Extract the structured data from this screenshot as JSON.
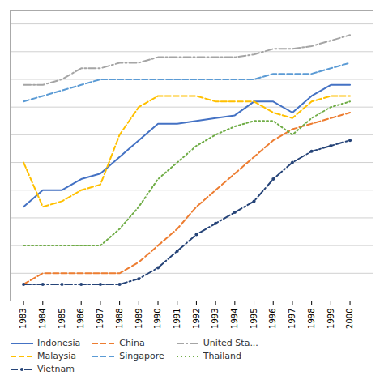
{
  "chart_data": {
    "type": "line",
    "x": [
      1983,
      1984,
      1985,
      1986,
      1987,
      1988,
      1989,
      1990,
      1991,
      1992,
      1993,
      1994,
      1995,
      1996,
      1997,
      1998,
      1999,
      2000
    ],
    "series": [
      {
        "name": "Indonesia",
        "color": "#4472C4",
        "line_style": "solid",
        "values": [
          0.34,
          0.4,
          0.4,
          0.44,
          0.46,
          0.52,
          0.58,
          0.64,
          0.64,
          0.65,
          0.66,
          0.67,
          0.72,
          0.72,
          0.68,
          0.74,
          0.78,
          0.78
        ]
      },
      {
        "name": "China",
        "color": "#ED7D31",
        "line_style": "dashed",
        "values": [
          0.06,
          0.1,
          0.1,
          0.1,
          0.1,
          0.1,
          0.14,
          0.2,
          0.26,
          0.34,
          0.4,
          0.46,
          0.52,
          0.58,
          0.62,
          0.64,
          0.66,
          0.68
        ]
      },
      {
        "name": "United Sta...",
        "color": "#A5A5A5",
        "line_style": "dashdot",
        "values": [
          0.78,
          0.78,
          0.8,
          0.84,
          0.84,
          0.86,
          0.86,
          0.88,
          0.88,
          0.88,
          0.88,
          0.88,
          0.89,
          0.91,
          0.91,
          0.92,
          0.94,
          0.96
        ]
      },
      {
        "name": "Malaysia",
        "color": "#FFC000",
        "line_style": "dashed",
        "values": [
          0.5,
          0.34,
          0.36,
          0.4,
          0.42,
          0.6,
          0.7,
          0.74,
          0.74,
          0.74,
          0.72,
          0.72,
          0.72,
          0.68,
          0.66,
          0.72,
          0.74,
          0.74
        ]
      },
      {
        "name": "Singapore",
        "color": "#5B9BD5",
        "line_style": "dashed",
        "values": [
          0.72,
          0.74,
          0.76,
          0.78,
          0.8,
          0.8,
          0.8,
          0.8,
          0.8,
          0.8,
          0.8,
          0.8,
          0.8,
          0.82,
          0.82,
          0.82,
          0.84,
          0.86
        ]
      },
      {
        "name": "Thailand",
        "color": "#70AD47",
        "line_style": "dotted",
        "values": [
          0.2,
          0.2,
          0.2,
          0.2,
          0.2,
          0.26,
          0.34,
          0.44,
          0.5,
          0.56,
          0.6,
          0.63,
          0.65,
          0.65,
          0.6,
          0.66,
          0.7,
          0.72
        ]
      },
      {
        "name": "Vietnam",
        "color": "#264478",
        "line_style": "dashdot",
        "marker": "point",
        "values": [
          0.06,
          0.06,
          0.06,
          0.06,
          0.06,
          0.06,
          0.08,
          0.12,
          0.18,
          0.24,
          0.28,
          0.32,
          0.36,
          0.44,
          0.5,
          0.54,
          0.56,
          0.58
        ]
      }
    ],
    "xlim": [
      1982.3,
      2001.2
    ],
    "xticks": [
      1983,
      1984,
      1985,
      1986,
      1987,
      1988,
      1989,
      1990,
      1991,
      1992,
      1993,
      1994,
      1995,
      1996,
      1997,
      1998,
      1999,
      2000
    ],
    "ylim": [
      0.0,
      1.05
    ],
    "yticks": [
      0,
      0.1,
      0.2,
      0.3,
      0.4,
      0.5,
      0.6,
      0.7,
      0.8,
      0.9,
      1.0
    ],
    "tick_labels": "x",
    "grid": true,
    "legend": "bottom"
  }
}
